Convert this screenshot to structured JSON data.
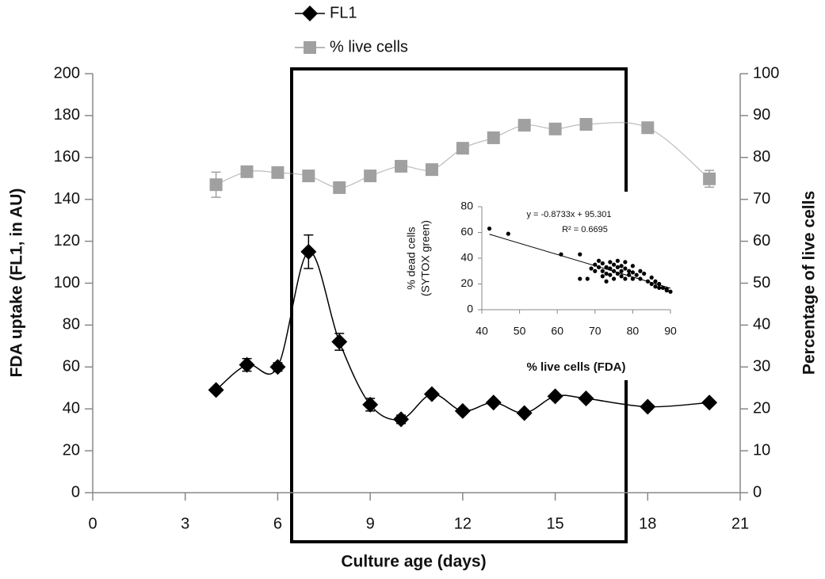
{
  "chart_data": [
    {
      "type": "line",
      "xlabel": "Culture age (days)",
      "ylabel": "FDA uptake (FL1, in AU)",
      "y2label": "Percentage of live cells",
      "x": [
        4,
        5,
        6,
        7,
        8,
        9,
        10,
        11,
        12,
        13,
        14,
        15,
        16,
        18,
        20
      ],
      "series": [
        {
          "name": "FL1",
          "color": "#000000",
          "marker": "diamond",
          "values": [
            49,
            61,
            60,
            115,
            72,
            42,
            35,
            47,
            39,
            43,
            38,
            46,
            45,
            41,
            43
          ],
          "errors": [
            1,
            3,
            2,
            8,
            4,
            3,
            2,
            1,
            1,
            1,
            1,
            1,
            1,
            1,
            1
          ]
        },
        {
          "name": "% live cells",
          "color": "#a0a0a0",
          "marker": "square",
          "axis": "y2",
          "values": [
            73.5,
            76.6,
            76.4,
            75.6,
            72.8,
            75.6,
            77.9,
            77.1,
            82.2,
            84.7,
            87.7,
            86.8,
            87.9,
            87.1,
            74.9
          ],
          "errors": [
            3,
            0.5,
            0.5,
            0.5,
            0.5,
            0.5,
            0.5,
            0.5,
            0.5,
            0.5,
            0.5,
            0.5,
            0.5,
            0.5,
            2
          ]
        }
      ],
      "xlim": [
        0,
        21
      ],
      "xticks": [
        0,
        3,
        6,
        9,
        12,
        15,
        18,
        21
      ],
      "ylim": [
        0,
        200
      ],
      "yticks": [
        0,
        20,
        40,
        60,
        80,
        100,
        120,
        140,
        160,
        180,
        200
      ],
      "y2lim": [
        0,
        100
      ],
      "y2ticks": [
        0,
        10,
        20,
        30,
        40,
        50,
        60,
        70,
        80,
        90,
        100
      ],
      "legend": "top"
    },
    {
      "type": "scatter",
      "xlabel": "% live cells (FDA)",
      "ylabel": [
        "% dead cells",
        "(SYTOX green)"
      ],
      "annotations": [
        "y = -0.8733x + 95.301",
        "R² = 0.6695"
      ],
      "x": [
        42,
        47,
        61,
        66,
        66,
        68,
        69,
        70,
        70,
        71,
        71,
        72,
        72,
        72,
        73,
        73,
        73,
        74,
        74,
        74,
        75,
        75,
        75,
        76,
        76,
        76,
        77,
        77,
        77,
        78,
        78,
        78,
        79,
        79,
        80,
        80,
        80,
        81,
        82,
        82,
        83,
        84,
        85,
        85,
        86,
        86,
        87,
        87,
        88,
        89,
        89,
        90
      ],
      "values": [
        63,
        59,
        43,
        43,
        24,
        24,
        32,
        35,
        30,
        38,
        33,
        36,
        30,
        26,
        33,
        28,
        22,
        37,
        32,
        27,
        35,
        30,
        24,
        38,
        33,
        28,
        34,
        30,
        26,
        37,
        32,
        24,
        30,
        27,
        34,
        29,
        24,
        27,
        30,
        24,
        28,
        22,
        25,
        20,
        22,
        18,
        20,
        17,
        17,
        15,
        16,
        14
      ],
      "color": "#000000",
      "trendline": {
        "x": [
          42,
          90
        ],
        "y": [
          58.6,
          16.7
        ]
      },
      "xlim": [
        40,
        90
      ],
      "xticks": [
        40,
        50,
        60,
        70,
        80,
        90
      ],
      "ylim": [
        0,
        80
      ],
      "yticks": [
        0,
        20,
        40,
        60,
        80
      ]
    }
  ]
}
